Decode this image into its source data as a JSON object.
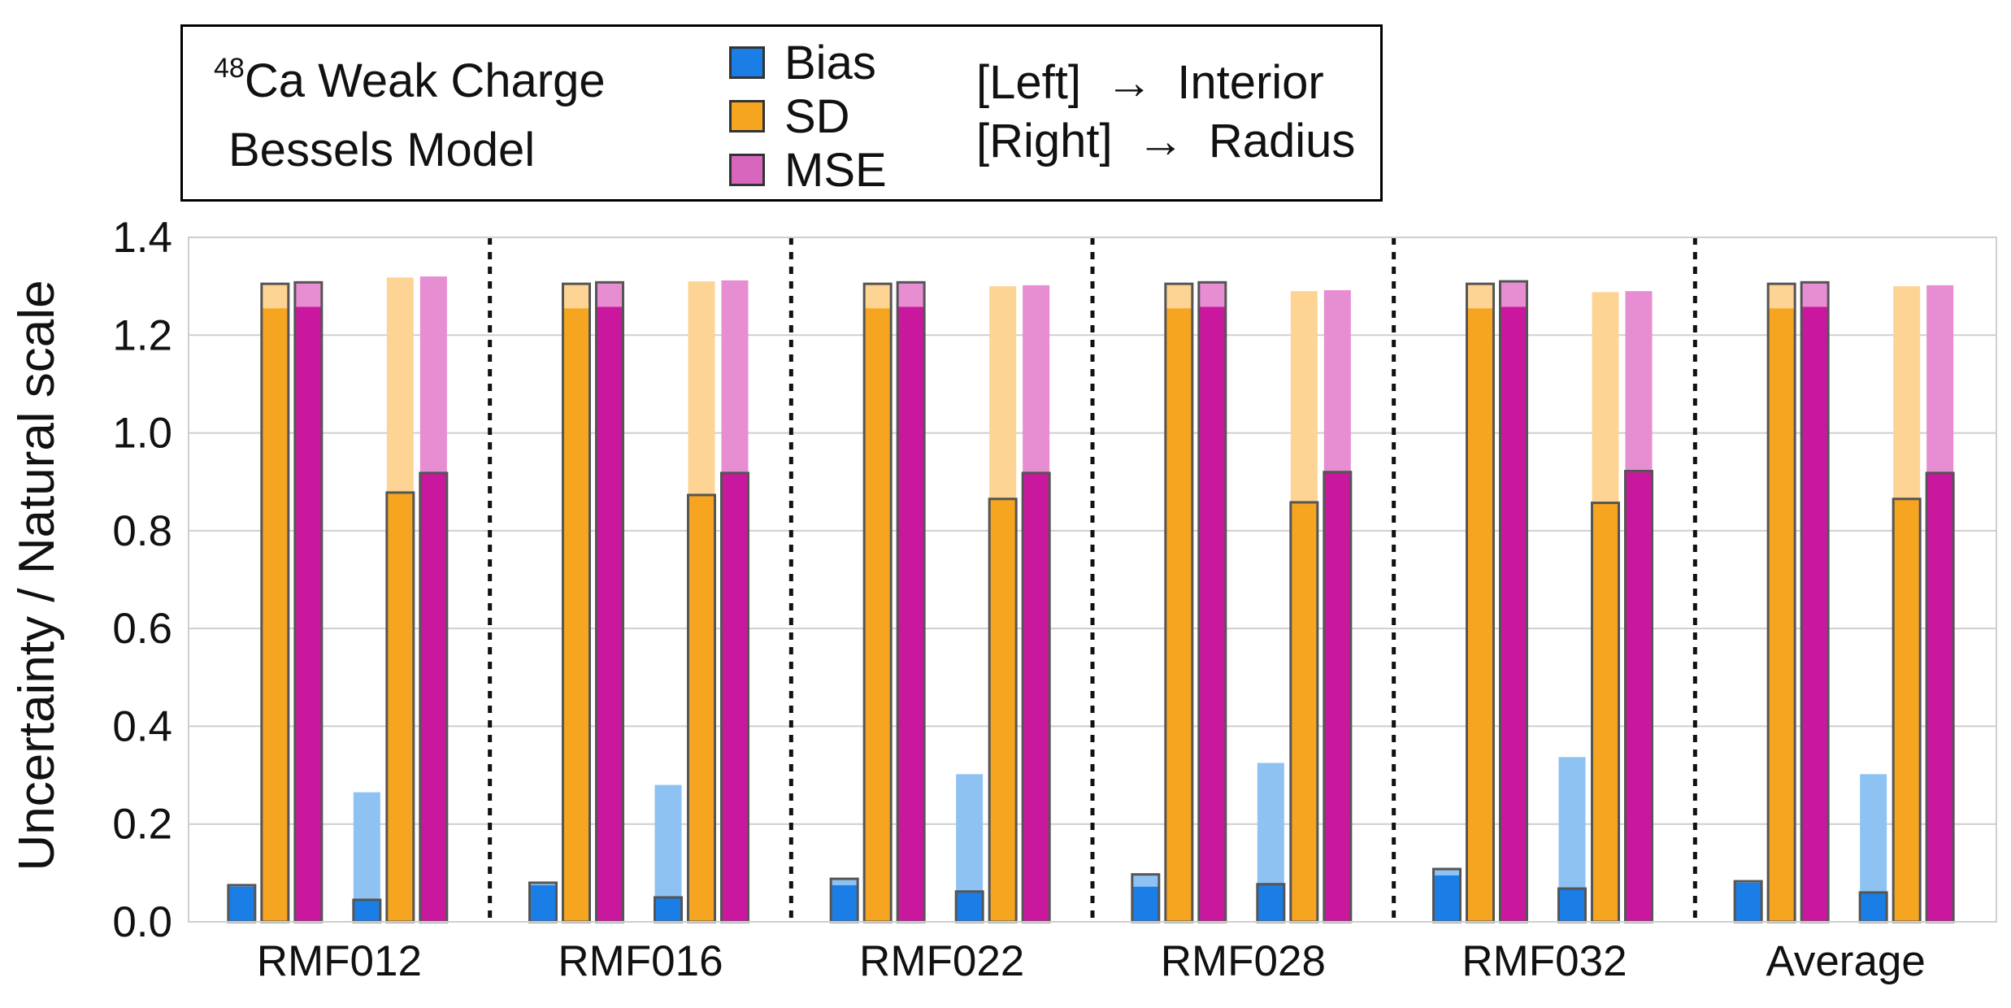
{
  "legend": {
    "nucleus_sup": "48",
    "title_line1": "Ca Weak Charge",
    "title_line2": "Bessels Model",
    "series": [
      {
        "key": "bias",
        "label": "Bias",
        "color": "#1a7ee6"
      },
      {
        "key": "sd",
        "label": "SD",
        "color": "#f6a521"
      },
      {
        "key": "mse",
        "label": "MSE",
        "color": "#c9179e"
      }
    ],
    "note_left_label": "[Left]",
    "note_left_target": "Interior",
    "note_right_label": "[Right]",
    "note_right_target": "Radius",
    "arrow_glyph": "→"
  },
  "chart_data": {
    "type": "bar",
    "title": "48Ca Weak Charge — Bessels Model",
    "ylabel": "Uncertainty / Natural scale",
    "xlabel": "",
    "ylim": [
      0,
      1.4
    ],
    "yticks": [
      "0.0",
      "0.2",
      "0.4",
      "0.6",
      "0.8",
      "1.0",
      "1.2",
      "1.4"
    ],
    "categories": [
      "RMF012",
      "RMF016",
      "RMF022",
      "RMF028",
      "RMF032",
      "Average"
    ],
    "groups": [
      "Interior",
      "Radius"
    ],
    "series": [
      {
        "name": "Bias",
        "group": "Interior",
        "values": [
          0.072,
          0.075,
          0.075,
          0.072,
          0.095,
          0.08
        ],
        "upper": [
          0.075,
          0.08,
          0.088,
          0.097,
          0.108,
          0.083
        ]
      },
      {
        "name": "SD",
        "group": "Interior",
        "values": [
          1.255,
          1.255,
          1.255,
          1.255,
          1.255,
          1.255
        ],
        "upper": [
          1.305,
          1.305,
          1.305,
          1.305,
          1.305,
          1.305
        ]
      },
      {
        "name": "MSE",
        "group": "Interior",
        "values": [
          1.258,
          1.258,
          1.258,
          1.258,
          1.258,
          1.258
        ],
        "upper": [
          1.308,
          1.308,
          1.308,
          1.308,
          1.31,
          1.308
        ]
      },
      {
        "name": "Bias",
        "group": "Radius",
        "values": [
          0.045,
          0.05,
          0.062,
          0.077,
          0.068,
          0.06
        ],
        "upper": [
          0.265,
          0.28,
          0.302,
          0.325,
          0.337,
          0.302
        ]
      },
      {
        "name": "SD",
        "group": "Radius",
        "values": [
          0.878,
          0.873,
          0.865,
          0.858,
          0.857,
          0.865
        ],
        "upper": [
          1.318,
          1.31,
          1.3,
          1.29,
          1.288,
          1.3
        ]
      },
      {
        "name": "MSE",
        "group": "Radius",
        "values": [
          0.918,
          0.918,
          0.918,
          0.92,
          0.922,
          0.918
        ],
        "upper": [
          1.32,
          1.312,
          1.302,
          1.292,
          1.29,
          1.302
        ]
      }
    ],
    "grid": true,
    "legend_position": "top-left"
  }
}
